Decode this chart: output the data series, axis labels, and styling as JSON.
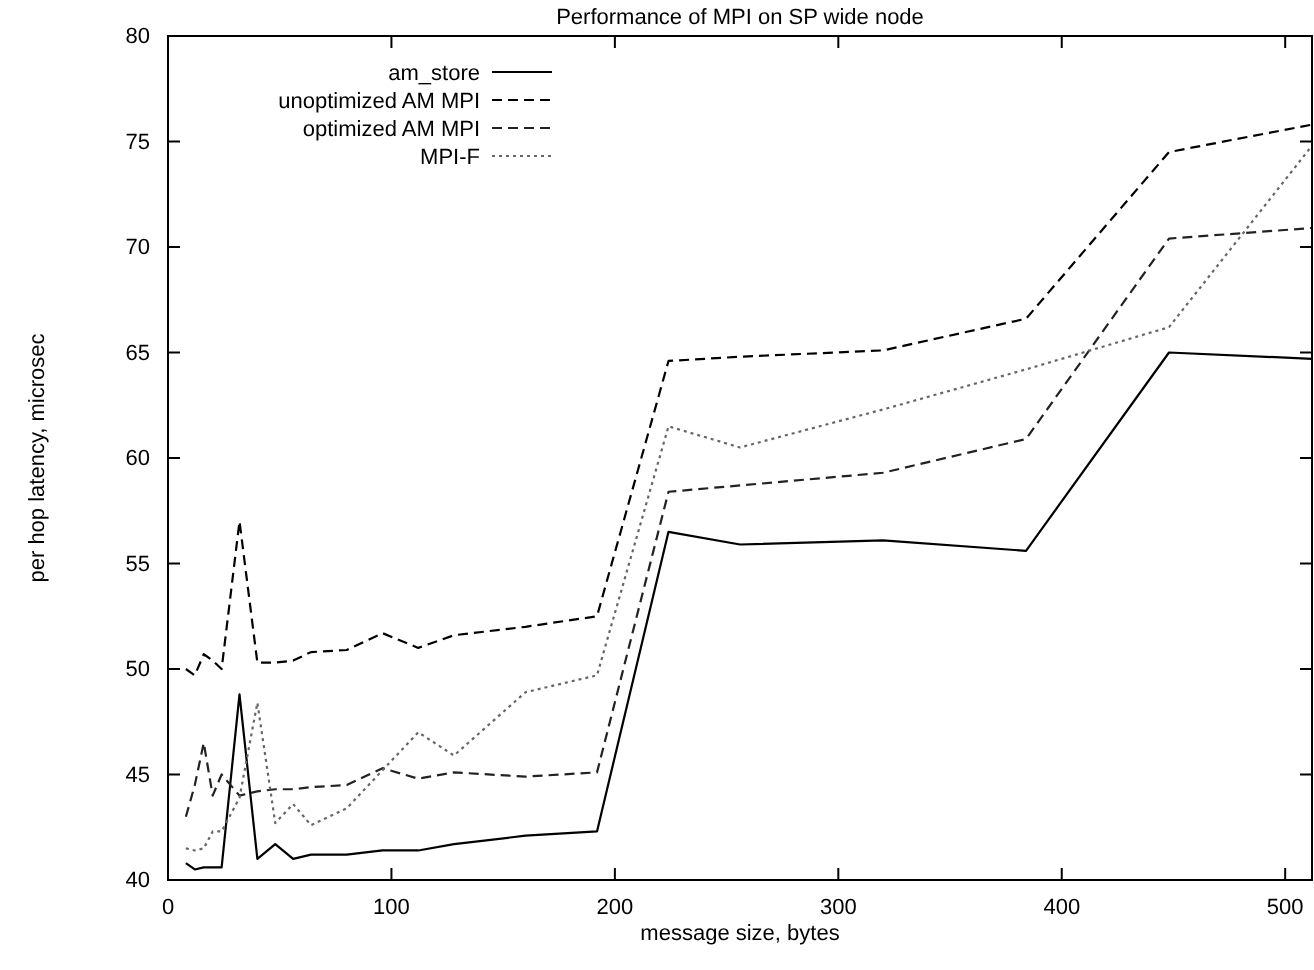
{
  "chart_data": {
    "type": "line",
    "title": "Performance of MPI on SP wide node",
    "xlabel": "message size, bytes",
    "ylabel": "per hop latency, microsec",
    "x": [
      8,
      12,
      16,
      20,
      24,
      32,
      40,
      48,
      56,
      64,
      80,
      96,
      112,
      128,
      160,
      192,
      224,
      256,
      320,
      384,
      448,
      512
    ],
    "series": [
      {
        "name": "am_store",
        "color": "#000000",
        "line_style": "solid",
        "values": [
          40.8,
          40.5,
          40.6,
          40.6,
          40.6,
          48.8,
          41.0,
          41.7,
          41.0,
          41.2,
          41.2,
          41.4,
          41.4,
          41.7,
          42.1,
          42.3,
          56.5,
          55.9,
          56.1,
          55.6,
          65.0,
          64.7
        ]
      },
      {
        "name": "unoptimized AM MPI",
        "color": "#000000",
        "line_style": "dashed",
        "values": [
          50.0,
          49.7,
          50.7,
          50.4,
          50.0,
          57.0,
          50.3,
          50.3,
          50.4,
          50.8,
          50.9,
          51.7,
          51.0,
          51.6,
          52.0,
          52.5,
          64.6,
          64.8,
          65.1,
          66.6,
          74.5,
          75.8
        ]
      },
      {
        "name": "optimized AM MPI",
        "color": "#222222",
        "line_style": "dashed",
        "values": [
          43.0,
          44.5,
          46.5,
          44.0,
          45.0,
          44.0,
          44.2,
          44.3,
          44.3,
          44.4,
          44.5,
          45.3,
          44.8,
          45.1,
          44.9,
          45.1,
          58.4,
          58.7,
          59.3,
          60.9,
          70.4,
          70.9
        ]
      },
      {
        "name": "MPI-F",
        "color": "#666666",
        "line_style": "dotted",
        "values": [
          41.5,
          41.4,
          41.5,
          42.3,
          42.3,
          43.9,
          48.4,
          42.7,
          43.6,
          42.6,
          43.4,
          45.2,
          47.0,
          45.9,
          48.9,
          49.7,
          61.5,
          60.5,
          62.3,
          64.2,
          66.2,
          74.8
        ]
      }
    ],
    "xlim": [
      0,
      512
    ],
    "xticks": [
      0,
      100,
      200,
      300,
      400,
      500
    ],
    "ylim": [
      40,
      80
    ],
    "yticks": [
      40,
      45,
      50,
      55,
      60,
      65,
      70,
      75,
      80
    ],
    "grid": false,
    "legend": "top left"
  }
}
